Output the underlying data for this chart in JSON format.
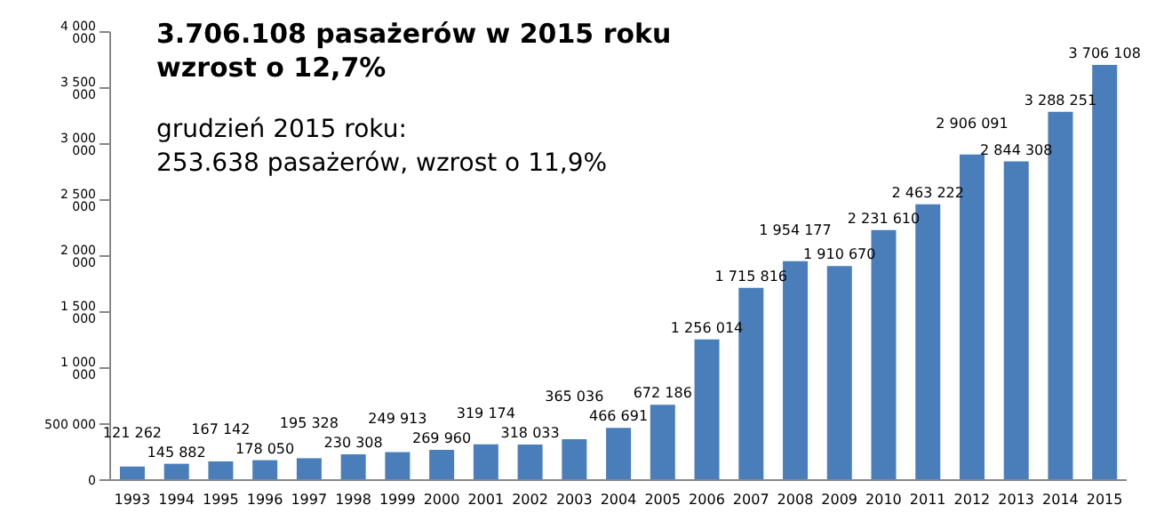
{
  "chart_data": {
    "type": "bar",
    "annotations": [
      "3.706.108 pasażerów w 2015 roku\nwzrost o 12,7%",
      "grudzień 2015 roku:\n253.638 pasażerów, wzrost o 11,9%"
    ],
    "categories": [
      "1993",
      "1994",
      "1995",
      "1996",
      "1997",
      "1998",
      "1999",
      "2000",
      "2001",
      "2002",
      "2003",
      "2004",
      "2005",
      "2006",
      "2007",
      "2008",
      "2009",
      "2010",
      "2011",
      "2012",
      "2013",
      "2014",
      "2015"
    ],
    "values": [
      121262,
      145882,
      167142,
      178050,
      195328,
      230308,
      249913,
      269960,
      319174,
      318033,
      365036,
      466691,
      672186,
      1256014,
      1715816,
      1954177,
      1910670,
      2231610,
      2463222,
      2906091,
      2844308,
      3288251,
      3706108
    ],
    "value_labels": [
      "121 262",
      "145 882",
      "167 142",
      "178 050",
      "195 328",
      "230 308",
      "249 913",
      "269 960",
      "319 174",
      "318 033",
      "365 036",
      "466 691",
      "672 186",
      "1 256 014",
      "1 715 816",
      "1 954 177",
      "1 910 670",
      "2 231 610",
      "2 463 222",
      "2 906 091",
      "2 844 308",
      "3 288 251",
      "3 706 108"
    ],
    "color": "#4a7ebb",
    "ylim": [
      0,
      4000000
    ],
    "yticks": [
      {
        "value": 0,
        "label": "0"
      },
      {
        "value": 500000,
        "label": "500 000"
      },
      {
        "value": 1000000,
        "label": "1 000 000"
      },
      {
        "value": 1500000,
        "label": "1 500 000"
      },
      {
        "value": 2000000,
        "label": "2 000 000"
      },
      {
        "value": 2500000,
        "label": "2 500 000"
      },
      {
        "value": 3000000,
        "label": "3 000 000"
      },
      {
        "value": 3500000,
        "label": "3 500 000"
      },
      {
        "value": 4000000,
        "label": "4 000 000"
      }
    ],
    "grid": false,
    "legend": false
  }
}
